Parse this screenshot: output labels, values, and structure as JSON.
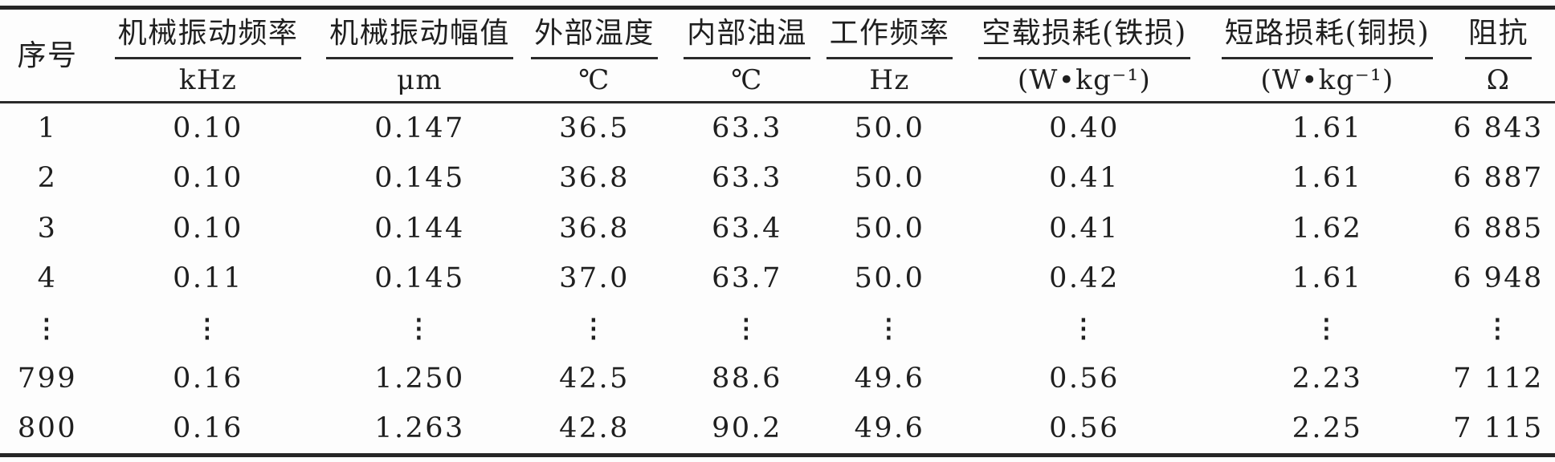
{
  "table": {
    "columns": [
      {
        "title": "序号",
        "unit": ""
      },
      {
        "title": "机械振动频率",
        "unit": "kHz"
      },
      {
        "title": "机械振动幅值",
        "unit": "μm"
      },
      {
        "title": "外部温度",
        "unit": "℃"
      },
      {
        "title": "内部油温",
        "unit": "℃"
      },
      {
        "title": "工作频率",
        "unit": "Hz"
      },
      {
        "title": "空载损耗(铁损)",
        "unit": "(W•kg⁻¹)"
      },
      {
        "title": "短路损耗(铜损)",
        "unit": "(W•kg⁻¹)"
      },
      {
        "title": "阻抗",
        "unit": "Ω"
      }
    ],
    "rows": [
      [
        "1",
        "0.10",
        "0.147",
        "36.5",
        "63.3",
        "50.0",
        "0.40",
        "1.61",
        "6 843"
      ],
      [
        "2",
        "0.10",
        "0.145",
        "36.8",
        "63.3",
        "50.0",
        "0.41",
        "1.61",
        "6 887"
      ],
      [
        "3",
        "0.10",
        "0.144",
        "36.8",
        "63.4",
        "50.0",
        "0.41",
        "1.62",
        "6 885"
      ],
      [
        "4",
        "0.11",
        "0.145",
        "37.0",
        "63.7",
        "50.0",
        "0.42",
        "1.61",
        "6 948"
      ],
      [
        "⋮",
        "⋮",
        "⋮",
        "⋮",
        "⋮",
        "⋮",
        "⋮",
        "⋮",
        "⋮"
      ],
      [
        "799",
        "0.16",
        "1.250",
        "42.5",
        "88.6",
        "49.6",
        "0.56",
        "2.23",
        "7 112"
      ],
      [
        "800",
        "0.16",
        "1.263",
        "42.8",
        "90.2",
        "49.6",
        "0.56",
        "2.25",
        "7 115"
      ]
    ]
  },
  "chart_data": {
    "type": "table",
    "title": "",
    "columns": [
      "序号",
      "机械振动频率 kHz",
      "机械振动幅值 μm",
      "外部温度 ℃",
      "内部油温 ℃",
      "工作频率 Hz",
      "空载损耗(铁损) (W•kg⁻¹)",
      "短路损耗(铜损) (W•kg⁻¹)",
      "阻抗 Ω"
    ],
    "rows": [
      [
        "1",
        "0.10",
        "0.147",
        "36.5",
        "63.3",
        "50.0",
        "0.40",
        "1.61",
        "6 843"
      ],
      [
        "2",
        "0.10",
        "0.145",
        "36.8",
        "63.3",
        "50.0",
        "0.41",
        "1.61",
        "6 887"
      ],
      [
        "3",
        "0.10",
        "0.144",
        "36.8",
        "63.4",
        "50.0",
        "0.41",
        "1.62",
        "6 885"
      ],
      [
        "4",
        "0.11",
        "0.145",
        "37.0",
        "63.7",
        "50.0",
        "0.42",
        "1.61",
        "6 948"
      ],
      [
        "⋮",
        "⋮",
        "⋮",
        "⋮",
        "⋮",
        "⋮",
        "⋮",
        "⋮",
        "⋮"
      ],
      [
        "799",
        "0.16",
        "1.250",
        "42.5",
        "88.6",
        "49.6",
        "0.56",
        "2.23",
        "7 112"
      ],
      [
        "800",
        "0.16",
        "1.263",
        "42.8",
        "90.2",
        "49.6",
        "0.56",
        "2.25",
        "7 115"
      ]
    ]
  }
}
